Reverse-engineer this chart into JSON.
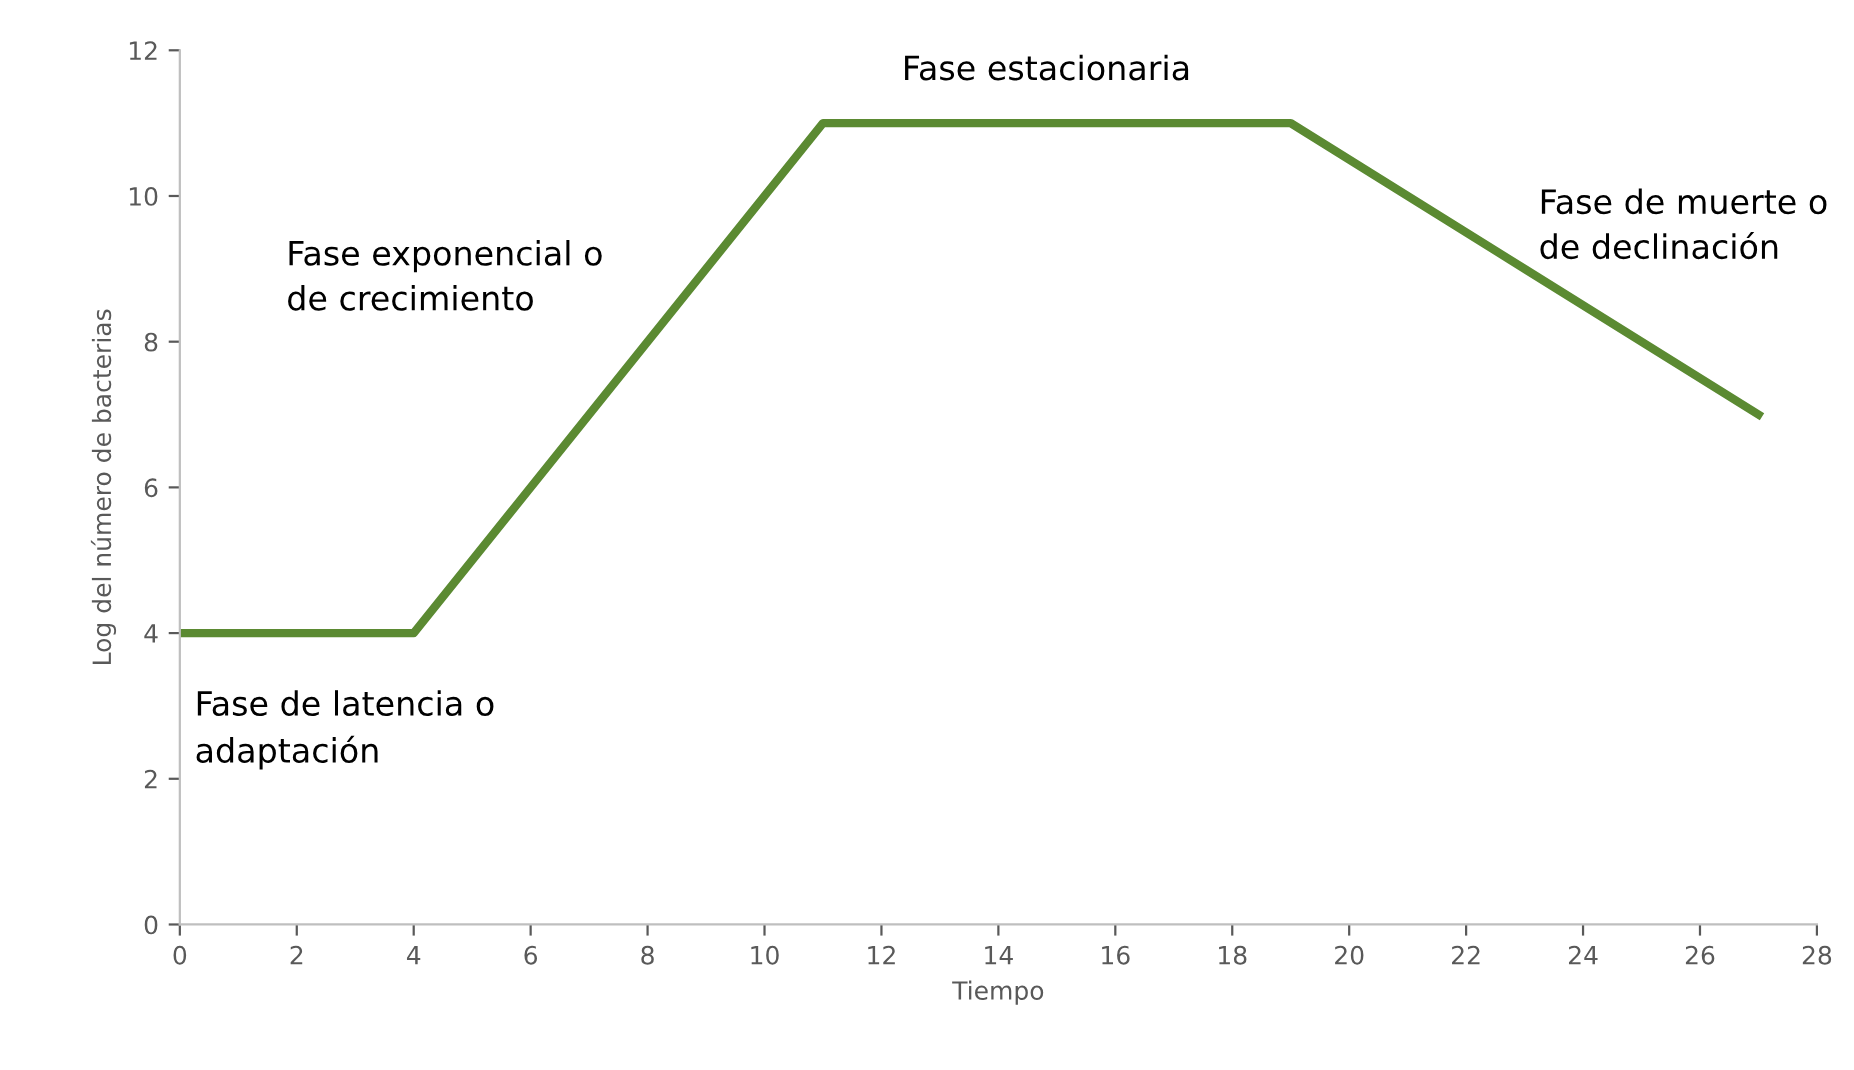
{
  "chart_data": {
    "type": "line",
    "xlabel": "Tiempo",
    "ylabel": "Log del número de bacterias",
    "x": [
      0,
      4,
      11,
      19,
      27
    ],
    "series": [
      {
        "color": "#5b8a32",
        "values": [
          4,
          4,
          11,
          11,
          7
        ]
      }
    ],
    "xlim": [
      0,
      28
    ],
    "xticks": [
      0,
      2,
      4,
      6,
      8,
      10,
      12,
      14,
      16,
      18,
      20,
      22,
      24,
      26,
      28
    ],
    "ylim": [
      0,
      12
    ],
    "yticks": [
      0,
      2,
      4,
      6,
      8,
      10,
      12
    ],
    "grid": false,
    "legend": false,
    "marker": "none",
    "line_style": "solid",
    "annotations": [
      "Fase de latencia o\nadaptación",
      "Fase exponencial o\nde crecimiento",
      "Fase estacionaria",
      "Fase de muerte o\nde declinación"
    ]
  }
}
